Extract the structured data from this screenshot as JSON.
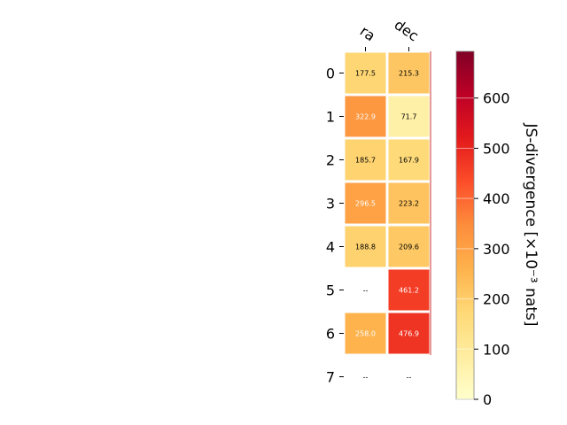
{
  "chart_data": {
    "type": "heatmap",
    "columns": [
      "ra",
      "dec"
    ],
    "rows": [
      "0",
      "1",
      "2",
      "3",
      "4",
      "5",
      "6",
      "7"
    ],
    "values": [
      [
        177.5,
        215.3
      ],
      [
        322.9,
        71.7
      ],
      [
        185.7,
        167.9
      ],
      [
        296.5,
        223.2
      ],
      [
        188.8,
        209.6
      ],
      [
        null,
        461.2
      ],
      [
        258.0,
        476.9
      ],
      [
        null,
        null
      ]
    ],
    "cell_labels": [
      [
        "177.5",
        "215.3"
      ],
      [
        "322.9",
        "71.7"
      ],
      [
        "185.7",
        "167.9"
      ],
      [
        "296.5",
        "223.2"
      ],
      [
        "188.8",
        "209.6"
      ],
      [
        "--",
        "461.2"
      ],
      [
        "258.0",
        "476.9"
      ],
      [
        "--",
        "--"
      ]
    ],
    "colorbar": {
      "label": "JS-divergence [×10⁻³ nats]",
      "range": [
        0,
        693
      ],
      "ticks": [
        "0",
        "100",
        "200",
        "300",
        "400",
        "500",
        "600"
      ],
      "tick_values": [
        0,
        100,
        200,
        300,
        400,
        500,
        600
      ],
      "colormap": "YlOrRd"
    },
    "grid": false
  }
}
